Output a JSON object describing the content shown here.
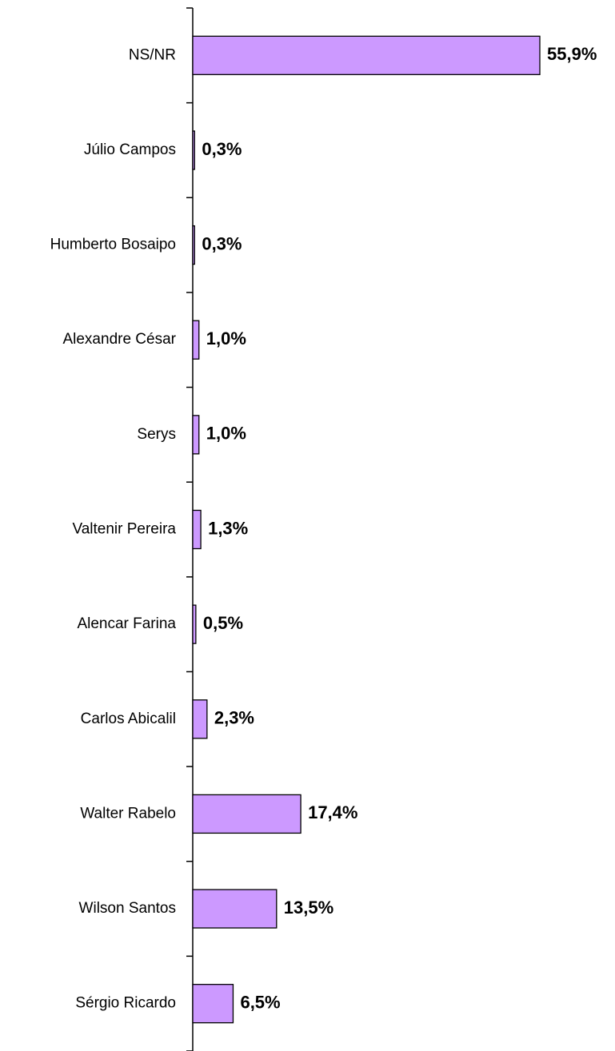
{
  "chart_data": {
    "type": "bar",
    "orientation": "horizontal",
    "categories": [
      "NS/NR",
      "Júlio Campos",
      "Humberto Bosaipo",
      "Alexandre César",
      "Serys",
      "Valtenir Pereira",
      "Alencar Farina",
      "Carlos Abicalil",
      "Walter Rabelo",
      "Wilson Santos",
      "Sérgio Ricardo"
    ],
    "values": [
      55.9,
      0.3,
      0.3,
      1.0,
      1.0,
      1.3,
      0.5,
      2.3,
      17.4,
      13.5,
      6.5
    ],
    "value_labels": [
      "55,9%",
      "0,3%",
      "0,3%",
      "1,0%",
      "1,0%",
      "1,3%",
      "0,5%",
      "2,3%",
      "17,4%",
      "13,5%",
      "6,5%"
    ],
    "color": "#cc99ff"
  }
}
